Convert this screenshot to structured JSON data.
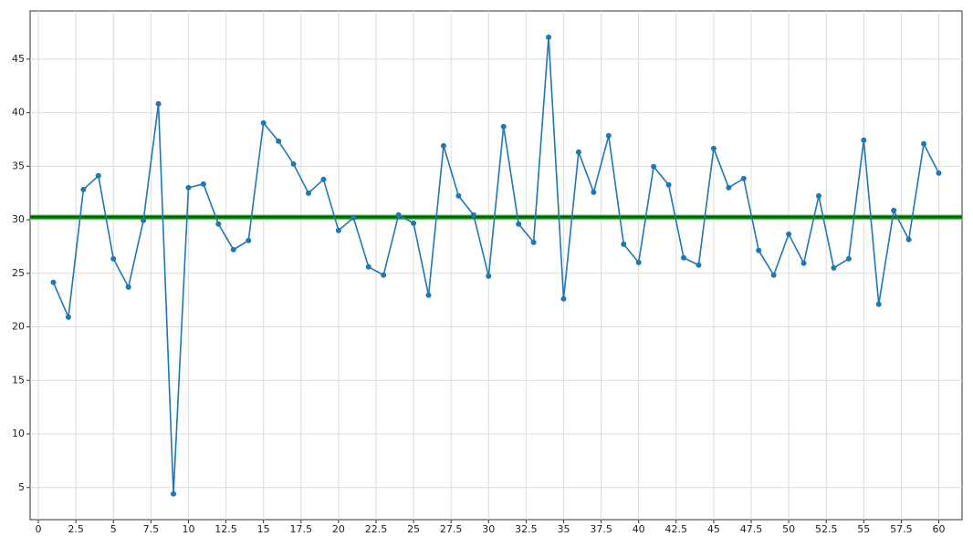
{
  "chart_data": {
    "type": "line",
    "x": [
      1,
      2,
      3,
      4,
      5,
      6,
      7,
      8,
      9,
      10,
      11,
      12,
      13,
      14,
      15,
      16,
      17,
      18,
      19,
      20,
      21,
      22,
      23,
      24,
      25,
      26,
      27,
      28,
      29,
      30,
      31,
      32,
      33,
      34,
      35,
      36,
      37,
      38,
      39,
      40,
      41,
      42,
      43,
      44,
      45,
      46,
      47,
      48,
      49,
      50,
      51,
      52,
      53,
      54,
      55,
      56,
      57,
      58,
      59,
      60
    ],
    "series": [
      {
        "color": "#1f77b4",
        "values": [
          24.15,
          20.91,
          32.83,
          34.11,
          26.36,
          23.72,
          29.94,
          40.83,
          4.4,
          33.0,
          33.34,
          29.6,
          27.21,
          28.06,
          39.04,
          37.34,
          35.21,
          32.49,
          33.77,
          29.0,
          30.19,
          25.6,
          24.83,
          30.45,
          29.68,
          22.96,
          36.91,
          32.23,
          30.45,
          24.74,
          38.7,
          29.6,
          27.89,
          47.04,
          22.62,
          36.32,
          32.57,
          37.85,
          27.72,
          26.02,
          34.96,
          33.26,
          26.45,
          25.77,
          36.66,
          33.0,
          33.85,
          27.13,
          24.83,
          28.66,
          25.94,
          32.23,
          25.51,
          26.36,
          37.43,
          22.11,
          30.87,
          28.15,
          37.09,
          34.36
        ]
      }
    ],
    "reference_line": {
      "value": 30.25,
      "color": "#006400",
      "edge_color": "#2ca02c"
    },
    "xlim": [
      -0.55,
      61.55
    ],
    "ylim": [
      2.0,
      49.5
    ],
    "xticks": [
      0,
      2.5,
      5,
      7.5,
      10,
      12.5,
      15,
      17.5,
      20,
      22.5,
      25,
      27.5,
      30,
      32.5,
      35,
      37.5,
      40,
      42.5,
      45,
      47.5,
      50,
      52.5,
      55,
      57.5,
      60
    ],
    "yticks": [
      5,
      10,
      15,
      20,
      25,
      30,
      35,
      40,
      45
    ],
    "grid": true
  }
}
